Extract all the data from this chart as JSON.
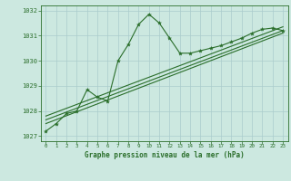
{
  "title": "Graphe pression niveau de la mer (hPa)",
  "bg_color": "#cce8e0",
  "grid_color": "#aacccc",
  "line_color": "#2a6e2a",
  "xlim": [
    -0.5,
    23.5
  ],
  "ylim": [
    1026.8,
    1032.2
  ],
  "yticks": [
    1027,
    1028,
    1029,
    1030,
    1031,
    1032
  ],
  "xticks": [
    0,
    1,
    2,
    3,
    4,
    5,
    6,
    7,
    8,
    9,
    10,
    11,
    12,
    13,
    14,
    15,
    16,
    17,
    18,
    19,
    20,
    21,
    22,
    23
  ],
  "series1_x": [
    0,
    1,
    2,
    3,
    4,
    5,
    6,
    7,
    8,
    9,
    10,
    11,
    12,
    13,
    14,
    15,
    16,
    17,
    18,
    19,
    20,
    21,
    22,
    23
  ],
  "series1_y": [
    1027.2,
    1027.5,
    1027.9,
    1028.0,
    1028.85,
    1028.55,
    1028.4,
    1030.0,
    1030.65,
    1031.45,
    1031.85,
    1031.5,
    1030.9,
    1030.3,
    1030.3,
    1030.4,
    1030.5,
    1030.6,
    1030.75,
    1030.9,
    1031.1,
    1031.25,
    1031.3,
    1031.2
  ],
  "trend1_x": [
    0,
    23
  ],
  "trend1_y": [
    1027.5,
    1031.1
  ],
  "trend2_x": [
    0,
    23
  ],
  "trend2_y": [
    1027.65,
    1031.2
  ],
  "trend3_x": [
    0,
    23
  ],
  "trend3_y": [
    1027.8,
    1031.35
  ]
}
